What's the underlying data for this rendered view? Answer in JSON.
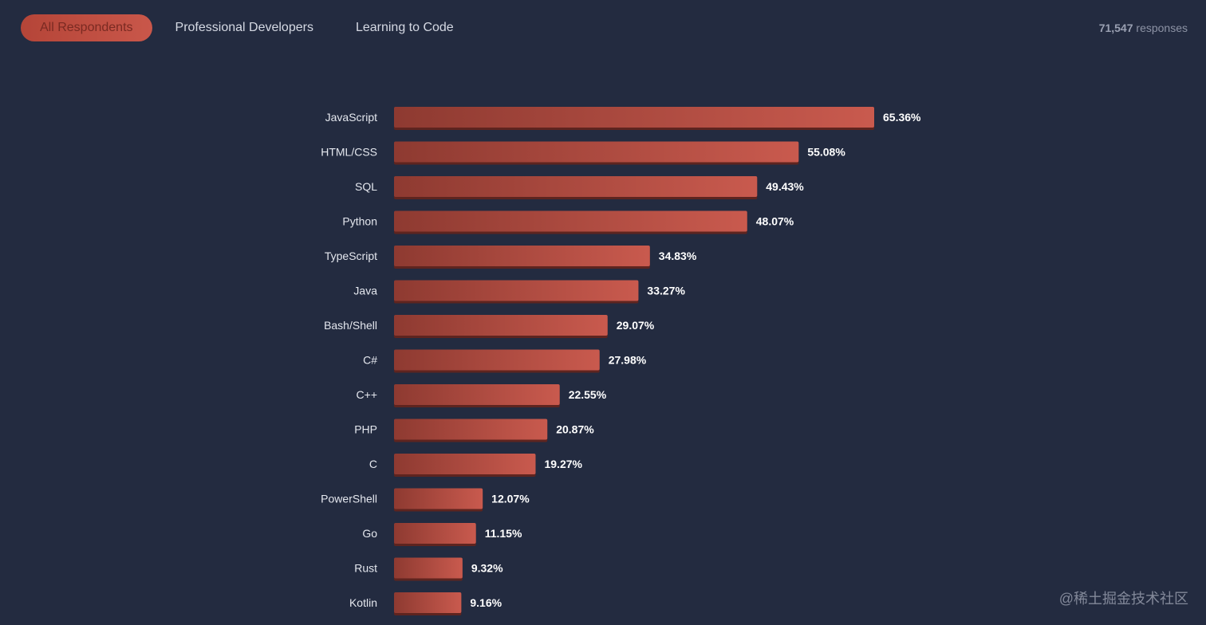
{
  "tabs": {
    "all": "All Respondents",
    "professional": "Professional Developers",
    "learning": "Learning to Code"
  },
  "responses": {
    "count": "71,547",
    "label": "responses"
  },
  "colors": {
    "background": "#232b40",
    "bar_start": "#8e3a31",
    "bar_end": "#c95a4e",
    "text": "#e4e7ee"
  },
  "watermark": "@稀土掘金技术社区",
  "chart_data": {
    "type": "bar",
    "orientation": "horizontal",
    "categories": [
      "JavaScript",
      "HTML/CSS",
      "SQL",
      "Python",
      "TypeScript",
      "Java",
      "Bash/Shell",
      "C#",
      "C++",
      "PHP",
      "C",
      "PowerShell",
      "Go",
      "Rust",
      "Kotlin"
    ],
    "values": [
      65.36,
      55.08,
      49.43,
      48.07,
      34.83,
      33.27,
      29.07,
      27.98,
      22.55,
      20.87,
      19.27,
      12.07,
      11.15,
      9.32,
      9.16
    ],
    "value_labels": [
      "65.36%",
      "55.08%",
      "49.43%",
      "48.07%",
      "34.83%",
      "33.27%",
      "29.07%",
      "27.98%",
      "22.55%",
      "20.87%",
      "19.27%",
      "12.07%",
      "11.15%",
      "9.32%",
      "9.16%"
    ],
    "title": "",
    "xlabel": "",
    "ylabel": "",
    "unit": "%",
    "xlim": [
      0,
      65.36
    ],
    "grid": false,
    "legend": "none"
  }
}
